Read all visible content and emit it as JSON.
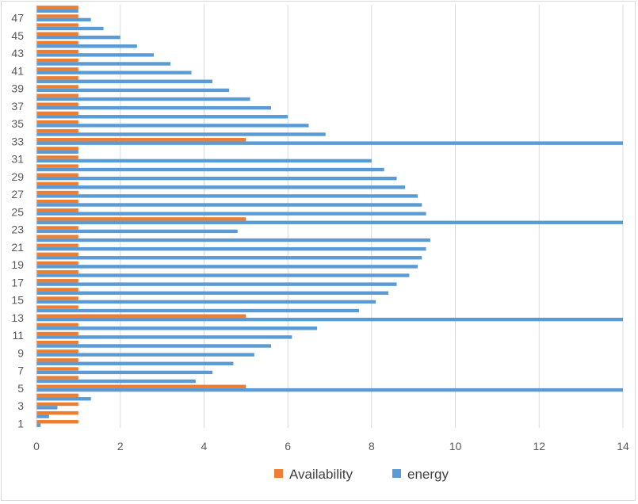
{
  "chart_data": {
    "type": "bar",
    "orientation": "horizontal",
    "title": "",
    "xlabel": "",
    "ylabel": "",
    "xlim": [
      0,
      14
    ],
    "x_ticks": [
      0,
      2,
      4,
      6,
      8,
      10,
      12,
      14
    ],
    "grid": "vertical",
    "legend_position": "bottom",
    "categories": [
      1,
      2,
      3,
      4,
      5,
      6,
      7,
      8,
      9,
      10,
      11,
      12,
      13,
      14,
      15,
      16,
      17,
      18,
      19,
      20,
      21,
      22,
      23,
      24,
      25,
      26,
      27,
      28,
      29,
      30,
      31,
      32,
      33,
      34,
      35,
      36,
      37,
      38,
      39,
      40,
      41,
      42,
      43,
      44,
      45,
      46,
      47,
      48
    ],
    "category_labels_shown": [
      1,
      3,
      5,
      7,
      9,
      11,
      13,
      15,
      17,
      19,
      21,
      23,
      25,
      27,
      29,
      31,
      33,
      35,
      37,
      39,
      41,
      43,
      45,
      47
    ],
    "series": [
      {
        "name": "Availability",
        "color": "#ED7D31",
        "values": [
          1,
          1,
          1,
          1,
          5,
          1,
          1,
          1,
          1,
          1,
          1,
          1,
          5,
          1,
          1,
          1,
          1,
          1,
          1,
          1,
          1,
          1,
          1,
          5,
          1,
          1,
          1,
          1,
          1,
          1,
          1,
          1,
          5,
          1,
          1,
          1,
          1,
          1,
          1,
          1,
          1,
          1,
          1,
          1,
          1,
          1,
          1,
          1
        ]
      },
      {
        "name": "energy",
        "color": "#5B9BD5",
        "values": [
          0.1,
          0.3,
          0.5,
          1.3,
          14,
          3.8,
          4.2,
          4.7,
          5.2,
          5.6,
          6.1,
          6.7,
          14,
          7.7,
          8.1,
          8.4,
          8.6,
          8.9,
          9.1,
          9.2,
          9.3,
          9.4,
          4.8,
          14,
          9.3,
          9.2,
          9.1,
          8.8,
          8.6,
          8.3,
          8.0,
          1.0,
          14,
          6.9,
          6.5,
          6.0,
          5.6,
          5.1,
          4.6,
          4.2,
          3.7,
          3.2,
          2.8,
          2.4,
          2.0,
          1.6,
          1.3,
          1.0
        ]
      }
    ]
  }
}
